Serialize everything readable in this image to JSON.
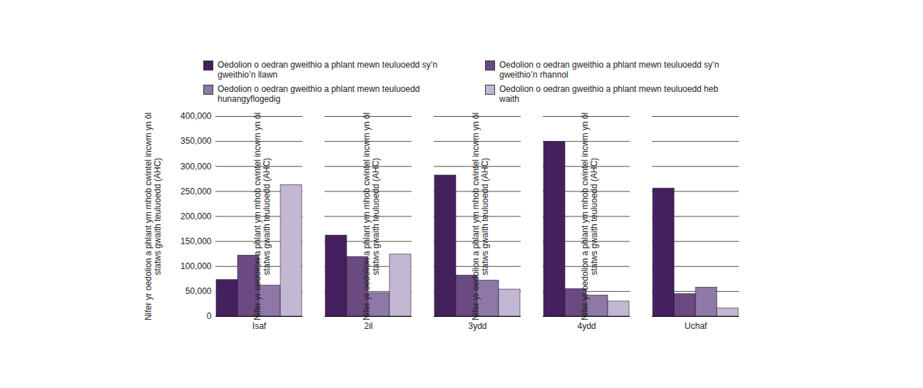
{
  "chart_data": {
    "type": "bar",
    "y_label": "Nifer yr oedolion a phlant ym mhob cwintel incwm yn ôl statws gwaith teuluoedd (AHC)",
    "categories": [
      "Isaf",
      "2il",
      "3ydd",
      "4ydd",
      "Uchaf"
    ],
    "series": [
      {
        "name": "Oedolion o oedran gweithio a phlant mewn teuluoedd sy’n gweithio’n llawn",
        "color": "#45205e",
        "values": [
          73000,
          162000,
          282000,
          349000,
          256000
        ]
      },
      {
        "name": "Oedolion o oedran gweithio a phlant mewn teuluoedd sy’n gweithio’n rhannol",
        "color": "#6b4a82",
        "values": [
          122000,
          119000,
          82000,
          55000,
          45000
        ]
      },
      {
        "name": "Oedolion o oedran gweithio a phlant mewn teuluoedd hunangyflogedig",
        "color": "#8e78a8",
        "values": [
          62000,
          47000,
          72000,
          42000,
          58000
        ]
      },
      {
        "name": "Oedolion o oedran gweithio a phlant mewn teuluoedd heb waith",
        "color": "#c3b8d3",
        "values": [
          263000,
          124000,
          54000,
          30000,
          16000
        ]
      }
    ],
    "ylim": [
      0,
      400000
    ],
    "yticks": [
      0,
      {
        "value": 50000,
        "label": "50,000"
      },
      {
        "value": 100000,
        "label": "100,000"
      },
      {
        "value": 150000,
        "label": "150,000"
      },
      {
        "value": 200000,
        "label": "200,000"
      },
      {
        "value": 250000,
        "label": "250,000"
      },
      {
        "value": 300000,
        "label": "300,000"
      },
      {
        "value": 350000,
        "label": "350,000"
      },
      {
        "value": 400000,
        "label": "400,000"
      }
    ],
    "grid": true,
    "legend": "top"
  }
}
